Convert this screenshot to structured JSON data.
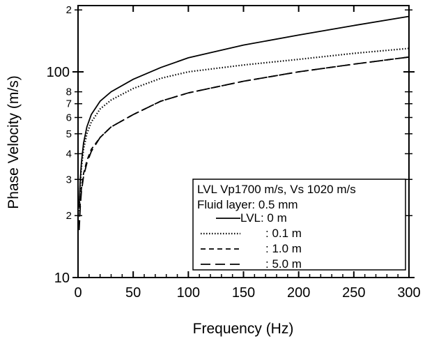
{
  "chart_data": {
    "type": "line",
    "title": "",
    "xlabel": "Frequency (Hz)",
    "ylabel": "Phase Velocity (m/s)",
    "xlim": [
      0,
      300
    ],
    "ylim": [
      10,
      210
    ],
    "yscale": "log",
    "grid": false,
    "legend_position": "bottom-right",
    "x_ticks": [
      0,
      50,
      100,
      150,
      200,
      250,
      300
    ],
    "x_tick_labels": [
      "0",
      "50",
      "100",
      "150",
      "200",
      "250",
      "300"
    ],
    "y_major_ticks": [
      10,
      100
    ],
    "y_major_labels": [
      "10",
      "100"
    ],
    "y_minor_ticks": [
      20,
      30,
      40,
      50,
      60,
      70,
      80,
      200
    ],
    "y_minor_labels": [
      "2",
      "3",
      "4",
      "5",
      "6",
      "7",
      "8",
      "2"
    ],
    "legend_header": [
      "LVL Vp1700 m/s, Vs 1020 m/s",
      "Fluid layer: 0.5 mm"
    ],
    "series": [
      {
        "name": "LVL:  0 m",
        "style": "solid",
        "x": [
          1,
          2,
          3,
          5,
          8,
          12,
          20,
          30,
          50,
          75,
          100,
          150,
          200,
          250,
          300
        ],
        "y": [
          22,
          30,
          36,
          45,
          54,
          62,
          72,
          80,
          92,
          105,
          117,
          135,
          151,
          168,
          186
        ]
      },
      {
        "name": ": 0.1 m",
        "style": "dotted",
        "x": [
          1,
          2,
          3,
          5,
          8,
          12,
          20,
          30,
          50,
          75,
          100,
          150,
          200,
          250,
          300
        ],
        "y": [
          21,
          28,
          34,
          42,
          50,
          57,
          66,
          73,
          83,
          93,
          100,
          108,
          115,
          123,
          130
        ]
      },
      {
        "name": ": 1.0 m",
        "style": "dashed",
        "x": [
          1,
          2,
          3,
          5,
          8,
          12,
          20,
          30,
          50,
          75,
          100,
          150,
          200,
          250,
          300
        ],
        "y": [
          18,
          23,
          27,
          32,
          37,
          42,
          48,
          54,
          62,
          72,
          79,
          90,
          100,
          109,
          118
        ]
      },
      {
        "name": ": 5.0 m",
        "style": "longdash",
        "x": [
          1,
          2,
          3,
          5,
          8,
          12,
          20,
          30,
          50,
          75,
          100,
          150,
          200,
          250,
          300
        ],
        "y": [
          17,
          22,
          26,
          31,
          36,
          41,
          48,
          54,
          62,
          72,
          79,
          90,
          100,
          109,
          118
        ]
      }
    ]
  }
}
